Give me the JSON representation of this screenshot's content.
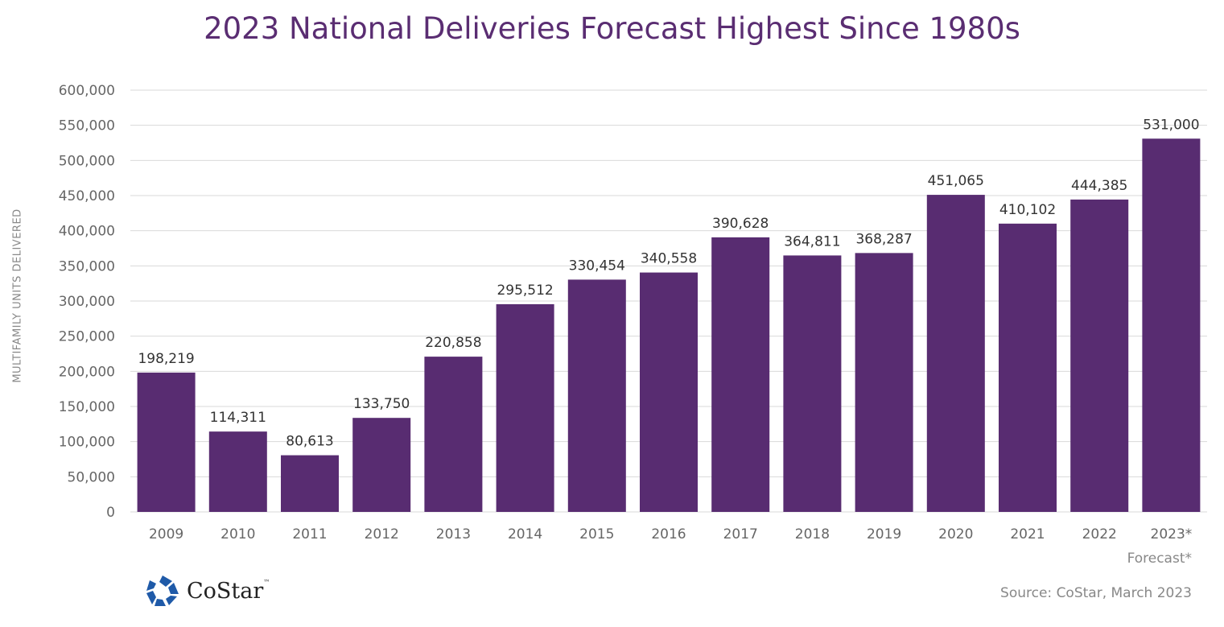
{
  "chart_data": {
    "type": "bar",
    "title": "2023 National Deliveries Forecast Highest Since 1980s",
    "ylabel": "MULTIFAMILY UNITS DELIVERED",
    "xlabel": "",
    "categories": [
      "2009",
      "2010",
      "2011",
      "2012",
      "2013",
      "2014",
      "2015",
      "2016",
      "2017",
      "2018",
      "2019",
      "2020",
      "2021",
      "2022",
      "2023*"
    ],
    "values": [
      198219,
      114311,
      80613,
      133750,
      220858,
      295512,
      330454,
      340558,
      390628,
      364811,
      368287,
      451065,
      410102,
      444385,
      531000
    ],
    "data_labels": [
      "198,219",
      "114,311",
      "80,613",
      "133,750",
      "220,858",
      "295,512",
      "330,454",
      "340,558",
      "390,628",
      "364,811",
      "368,287",
      "451,065",
      "410,102",
      "444,385",
      "531,000"
    ],
    "ylim": [
      0,
      600000
    ],
    "yticks": [
      0,
      50000,
      100000,
      150000,
      200000,
      250000,
      300000,
      350000,
      400000,
      450000,
      500000,
      550000,
      600000
    ],
    "ytick_labels": [
      "0",
      "50,000",
      "100,000",
      "150,000",
      "200,000",
      "250,000",
      "300,000",
      "350,000",
      "400,000",
      "450,000",
      "500,000",
      "550,000",
      "600,000"
    ],
    "grid": true,
    "bar_color": "#582c71",
    "footnote": "Forecast*",
    "source": "Source: CoStar, March 2023"
  },
  "logo": {
    "text": "CoStar",
    "tm": "™",
    "color": "#1f5aa8"
  }
}
